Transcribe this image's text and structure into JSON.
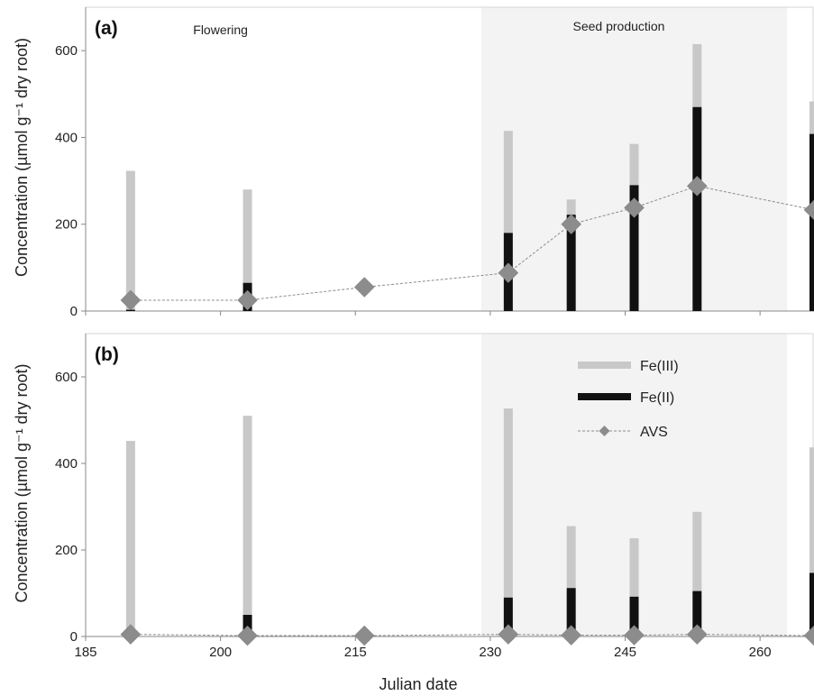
{
  "chart_data": [
    {
      "type": "bar",
      "panel_label": "(a)",
      "xlabel": "",
      "ylabel": "Concentration (µmol g⁻¹ dry root)",
      "ylim": [
        0,
        700
      ],
      "yticks": [
        0,
        200,
        400,
        600
      ],
      "xlim": [
        185,
        266
      ],
      "xticks": [
        185,
        200,
        215,
        230,
        245,
        260
      ],
      "grid": false,
      "shaded_region": {
        "from": 229,
        "to": 263,
        "label": "Seed production"
      },
      "annotations": [
        {
          "text": "Flowering",
          "x": 200
        }
      ],
      "x": [
        190,
        203,
        216,
        232,
        239,
        246,
        253,
        266
      ],
      "series": [
        {
          "name": "Fe(III)",
          "kind": "bar-top",
          "color": "#c8c8c8",
          "values": [
            320,
            215,
            null,
            235,
            35,
            95,
            145,
            75
          ]
        },
        {
          "name": "Fe(II)",
          "kind": "bar-bottom",
          "color": "#111111",
          "values": [
            3,
            65,
            null,
            180,
            222,
            290,
            470,
            408
          ]
        },
        {
          "name": "AVS",
          "kind": "line-marker",
          "color": "#8c8c8c",
          "values": [
            25,
            25,
            55,
            88,
            200,
            238,
            288,
            233
          ]
        }
      ]
    },
    {
      "type": "bar",
      "panel_label": "(b)",
      "xlabel": "Julian date",
      "ylabel": "Concentration (µmol g⁻¹ dry root)",
      "ylim": [
        0,
        700
      ],
      "yticks": [
        0,
        200,
        400,
        600
      ],
      "xlim": [
        185,
        266
      ],
      "xticks": [
        185,
        200,
        215,
        230,
        245,
        260
      ],
      "grid": false,
      "legend": "top-right",
      "shaded_region": {
        "from": 229,
        "to": 263
      },
      "x": [
        190,
        203,
        216,
        232,
        239,
        246,
        253,
        266
      ],
      "series": [
        {
          "name": "Fe(III)",
          "kind": "bar-top",
          "color": "#c8c8c8",
          "values": [
            450,
            460,
            null,
            437,
            143,
            135,
            183,
            290
          ]
        },
        {
          "name": "Fe(II)",
          "kind": "bar-bottom",
          "color": "#111111",
          "values": [
            2,
            50,
            null,
            90,
            112,
            92,
            105,
            147
          ]
        },
        {
          "name": "AVS",
          "kind": "line-marker",
          "color": "#8c8c8c",
          "values": [
            5,
            2,
            2,
            5,
            3,
            3,
            5,
            2
          ]
        }
      ]
    }
  ]
}
